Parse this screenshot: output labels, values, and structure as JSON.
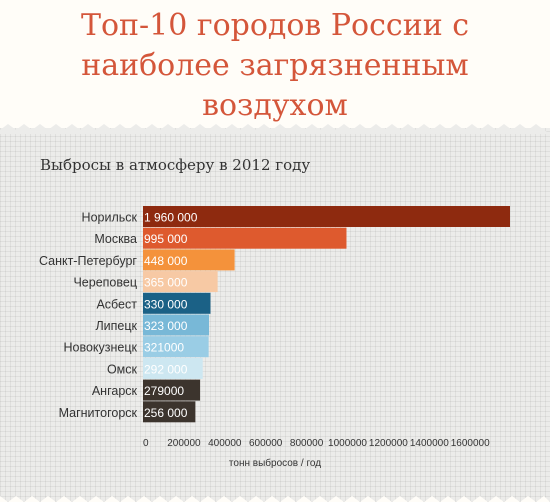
{
  "title": "Топ-10 городов России с наиболее загрязненным воздухом",
  "title_lines": [
    "Топ-10 городов России с",
    "наиболее загрязненным",
    "воздухом"
  ],
  "chart_data": {
    "type": "bar",
    "orientation": "horizontal",
    "subtitle": "Выбросы в атмосферу в 2012 году",
    "xlabel": "тонн выбросов / год",
    "xlim": [
      0,
      1600000
    ],
    "grid": true,
    "categories": [
      "Норильск",
      "Москва",
      "Санкт-Петербург",
      "Череповец",
      "Асбест",
      "Липецк",
      "Новокузнецк",
      "Омск",
      "Ангарск",
      "Магнитогорск"
    ],
    "values": [
      1960000,
      995000,
      448000,
      365000,
      330000,
      323000,
      321000,
      292000,
      279000,
      256000
    ],
    "value_labels": [
      "1 960 000",
      "995 000",
      "448 000",
      "365 000",
      "330 000",
      "323 000",
      "321000",
      "292 000",
      "279000",
      "256 000"
    ],
    "x_ticks": [
      "0",
      "200000",
      "400000",
      "600000",
      "800000",
      "1000000",
      "1200000",
      "1400000",
      "1600000"
    ],
    "colors": [
      "#8e2a0f",
      "#de5a2e",
      "#f4923b",
      "#f7c9a4",
      "#1b6186",
      "#78b8d7",
      "#9acde5",
      "#cde7f1",
      "#3c342d",
      "#3c342d"
    ],
    "label_colors": [
      "#ffffff",
      "#ffffff",
      "#ffffff",
      "#ffffff",
      "#ffffff",
      "#ffffff",
      "#ffffff",
      "#ffffff",
      "#ffffff",
      "#ffffff"
    ]
  }
}
